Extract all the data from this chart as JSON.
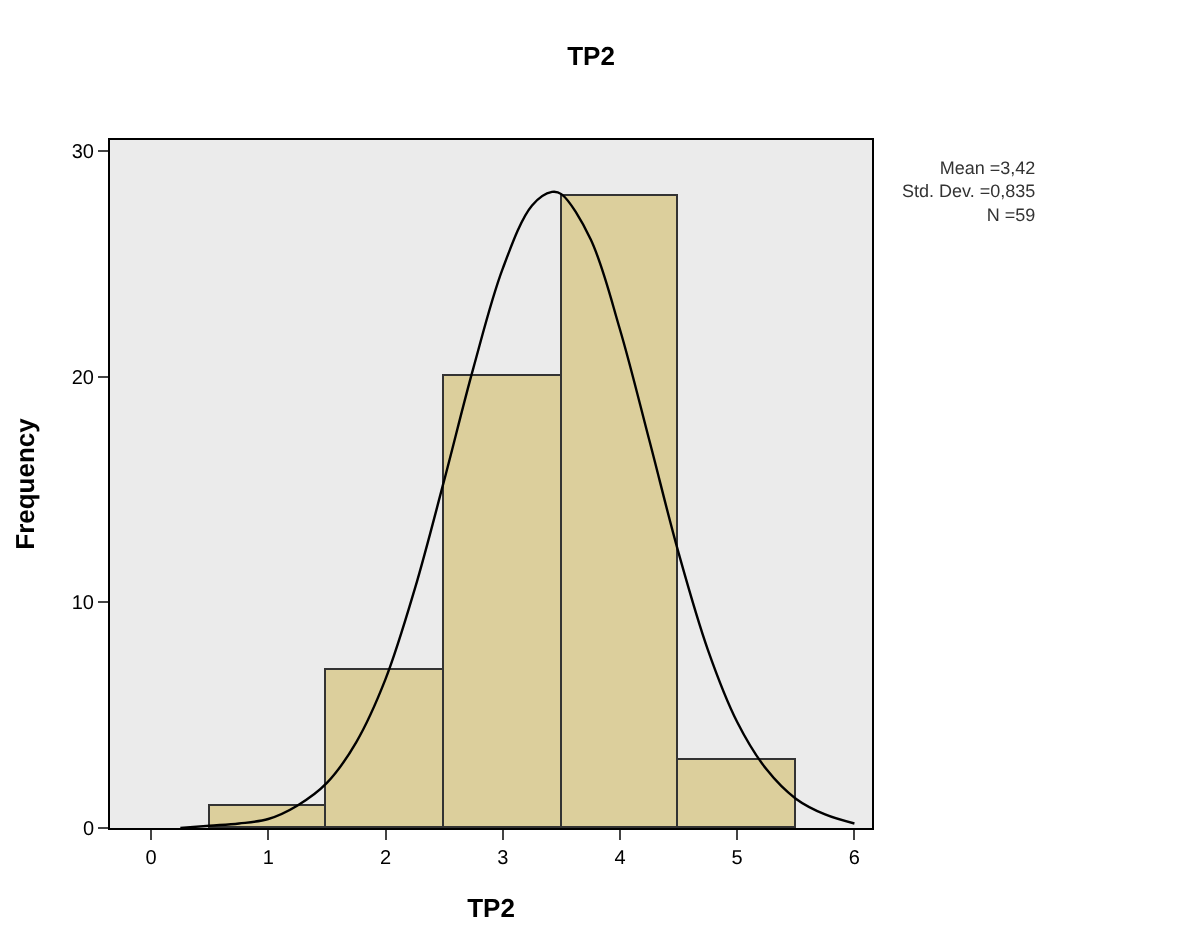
{
  "chart_data": {
    "type": "histogram",
    "title": "TP2",
    "xlabel": "TP2",
    "ylabel": "Frequency",
    "bins": [
      0.5,
      1.5,
      2.5,
      3.5,
      4.5,
      5.5
    ],
    "values": [
      1,
      7,
      20,
      28,
      3
    ],
    "color": "#dccf9c",
    "series": [
      {
        "type": "line",
        "color": "#000000",
        "x": [
          0.25,
          0.5,
          0.75,
          1.0,
          1.25,
          1.5,
          1.75,
          2.0,
          2.25,
          2.5,
          2.75,
          3.0,
          3.25,
          3.42,
          3.5,
          3.75,
          4.0,
          4.25,
          4.5,
          4.75,
          5.0,
          5.25,
          5.5,
          5.75,
          6.0
        ],
        "values": [
          0,
          0.1,
          0.2,
          0.4,
          1.0,
          2.0,
          3.8,
          6.6,
          10.6,
          15.4,
          20.4,
          24.8,
          27.6,
          28.2,
          28.1,
          26.1,
          22.1,
          17.2,
          12.2,
          7.9,
          4.7,
          2.6,
          1.3,
          0.6,
          0.2
        ]
      }
    ],
    "xlim": [
      -0.35,
      6.15
    ],
    "ylim": [
      0,
      30.5
    ],
    "xticks": [
      0,
      1,
      2,
      3,
      4,
      5,
      6
    ],
    "yticks": [
      0,
      10,
      20,
      30
    ],
    "grid": false,
    "marker": "none",
    "line_style": "solid",
    "annotations": [
      "Mean =3,42\nStd. Dev. =0,835\nN =59"
    ]
  }
}
